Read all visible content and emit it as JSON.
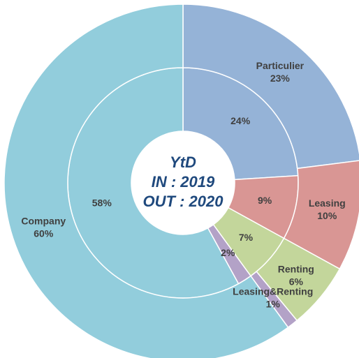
{
  "chart_data": {
    "type": "donut",
    "center_text": [
      "YtD",
      "IN : 2019",
      "OUT : 2020"
    ],
    "categories": [
      "Particulier",
      "Leasing",
      "Renting",
      "Leasing&Renting",
      "Company"
    ],
    "colors": [
      "#95b3d7",
      "#d99694",
      "#c3d69b",
      "#b3a2c7",
      "#92cddc"
    ],
    "series": [
      {
        "ring": "inner",
        "values": [
          24,
          9,
          7,
          2,
          58
        ],
        "value_labels": [
          "24%",
          "9%",
          "7%",
          "2%",
          "58%"
        ]
      },
      {
        "ring": "outer",
        "values": [
          23,
          10,
          6,
          1,
          60
        ],
        "value_labels": [
          "23%",
          "10%",
          "6%",
          "1%",
          "60%"
        ]
      }
    ]
  }
}
